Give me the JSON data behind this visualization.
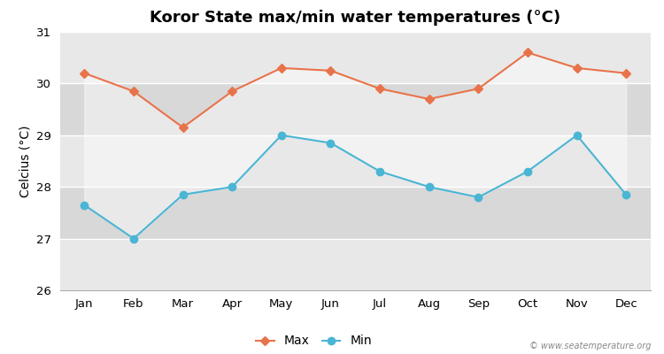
{
  "title": "Koror State max/min water temperatures (°C)",
  "ylabel": "Celcius (°C)",
  "months": [
    "Jan",
    "Feb",
    "Mar",
    "Apr",
    "May",
    "Jun",
    "Jul",
    "Aug",
    "Sep",
    "Oct",
    "Nov",
    "Dec"
  ],
  "max_temps": [
    30.2,
    29.85,
    29.15,
    29.85,
    30.3,
    30.25,
    29.9,
    29.7,
    29.9,
    30.6,
    30.3,
    30.2
  ],
  "min_temps": [
    27.65,
    27.0,
    27.85,
    28.0,
    29.0,
    28.85,
    28.3,
    28.0,
    27.8,
    28.3,
    29.0,
    27.85
  ],
  "max_color": "#e8734a",
  "min_color": "#4ab5d4",
  "ylim": [
    26,
    31
  ],
  "yticks": [
    26,
    27,
    28,
    29,
    30,
    31
  ],
  "band_colors": [
    "#e8e8e8",
    "#d8d8d8"
  ],
  "outer_bg_color": "#ffffff",
  "grid_color": "#ffffff",
  "watermark": "© www.seatemperature.org",
  "title_fontsize": 13,
  "label_fontsize": 10,
  "tick_fontsize": 9.5
}
